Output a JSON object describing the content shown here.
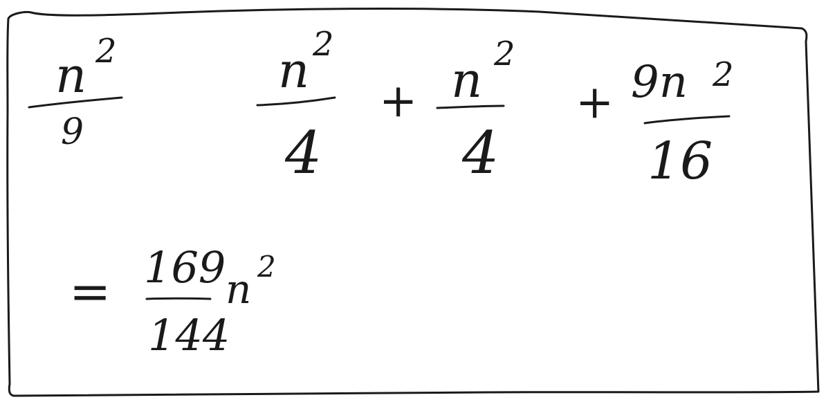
{
  "colors": {
    "ink": "#1a1a1a",
    "paper": "#ffffff"
  },
  "expressions": {
    "term_a": {
      "numerator": "n",
      "exponent": "2",
      "denominator": "9"
    },
    "term_b1": {
      "numerator": "n",
      "exponent": "2",
      "denominator": "4"
    },
    "plus_1": "+",
    "term_b2": {
      "numerator": "n",
      "exponent": "2",
      "denominator": "4"
    },
    "plus_2": "+",
    "term_b3": {
      "numerator": "9n",
      "exponent": "2",
      "denominator": "16"
    },
    "result": {
      "equals": "=",
      "numerator": "169",
      "denominator": "144",
      "variable": "n",
      "exponent": "2"
    }
  }
}
